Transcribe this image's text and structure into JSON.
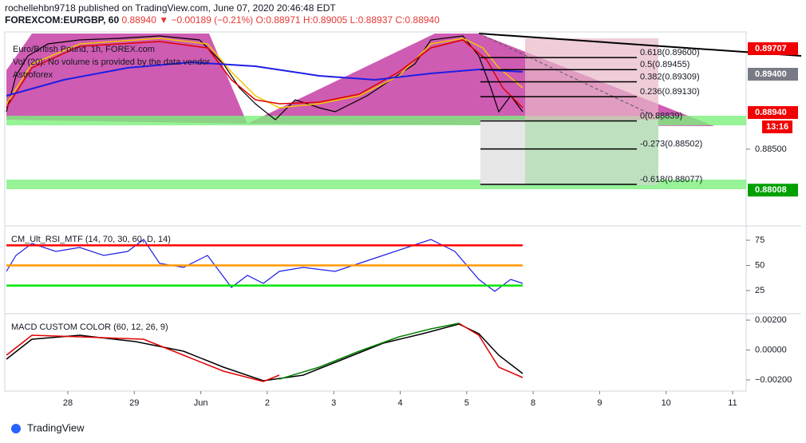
{
  "header": {
    "publisher": "rochellehbn9718 published on TradingView.com, June 07, 2020 20:46:48 EDT",
    "symbol": "FOREXCOM:EURGBP, 60",
    "last": "0.88940",
    "change": "▼ −0.00189 (−0.21%)",
    "open": "O:0.88971",
    "high": "H:0.89005",
    "low": "L:0.88937",
    "close": "C:0.88940"
  },
  "legend": [
    "Euro/British Pound, 1h, FOREX.com",
    "Vol (20): No volume is provided by the data vendor",
    "Astroforex"
  ],
  "main_panel": {
    "ylim": [
      0.87588,
      0.89908
    ],
    "yticks": [
      {
        "value": 0.885,
        "label": "0.88500"
      }
    ],
    "price_labels": [
      {
        "value": 0.89707,
        "label": "0.89707",
        "color": "#f00000"
      },
      {
        "value": 0.894,
        "label": "0.89400",
        "color": "#787b86"
      },
      {
        "value": 0.8894,
        "label": "0.88940",
        "color": "#f00000"
      },
      {
        "value": 0.88008,
        "label": "0.88008",
        "color": "#00a000"
      }
    ],
    "countdown": "13:16",
    "fib_levels": [
      {
        "label": "0.618(0.89600)",
        "price": 0.896
      },
      {
        "label": "0.5(0.89455)",
        "price": 0.89455
      },
      {
        "label": "0.382(0.89309)",
        "price": 0.89309
      },
      {
        "label": "0.236(0.89130)",
        "price": 0.8913
      },
      {
        "label": "0(0.88839)",
        "price": 0.88839
      },
      {
        "label": "-0.273(0.88502)",
        "price": 0.88502
      },
      {
        "label": "-0.618(0.88077)",
        "price": 0.88077
      }
    ]
  },
  "rsi_panel": {
    "title": "CM_Ult_RSI_MTF (14, 70, 30, 60, D, 14)",
    "ylim": [
      2.8,
      88.5
    ],
    "yticks": [
      75,
      50,
      25
    ],
    "levels": [
      {
        "value": 70,
        "color": "#ff0000"
      },
      {
        "value": 50,
        "color": "#ff9800"
      },
      {
        "value": 30,
        "color": "#00e600"
      }
    ]
  },
  "macd_panel": {
    "title": "MACD CUSTOM COLOR (60, 12, 26, 9)",
    "ylim": [
      -0.00275,
      0.00243
    ],
    "yticks": [
      {
        "value": 0.002,
        "label": "0.00200"
      },
      {
        "value": 0,
        "label": "0.00000"
      },
      {
        "value": -0.002,
        "label": "−0.00200"
      }
    ]
  },
  "xaxis": {
    "labels": [
      "28",
      "29",
      "Jun",
      "2",
      "3",
      "4",
      "5",
      "8",
      "9",
      "10",
      "11"
    ]
  },
  "footer": "TradingView"
}
